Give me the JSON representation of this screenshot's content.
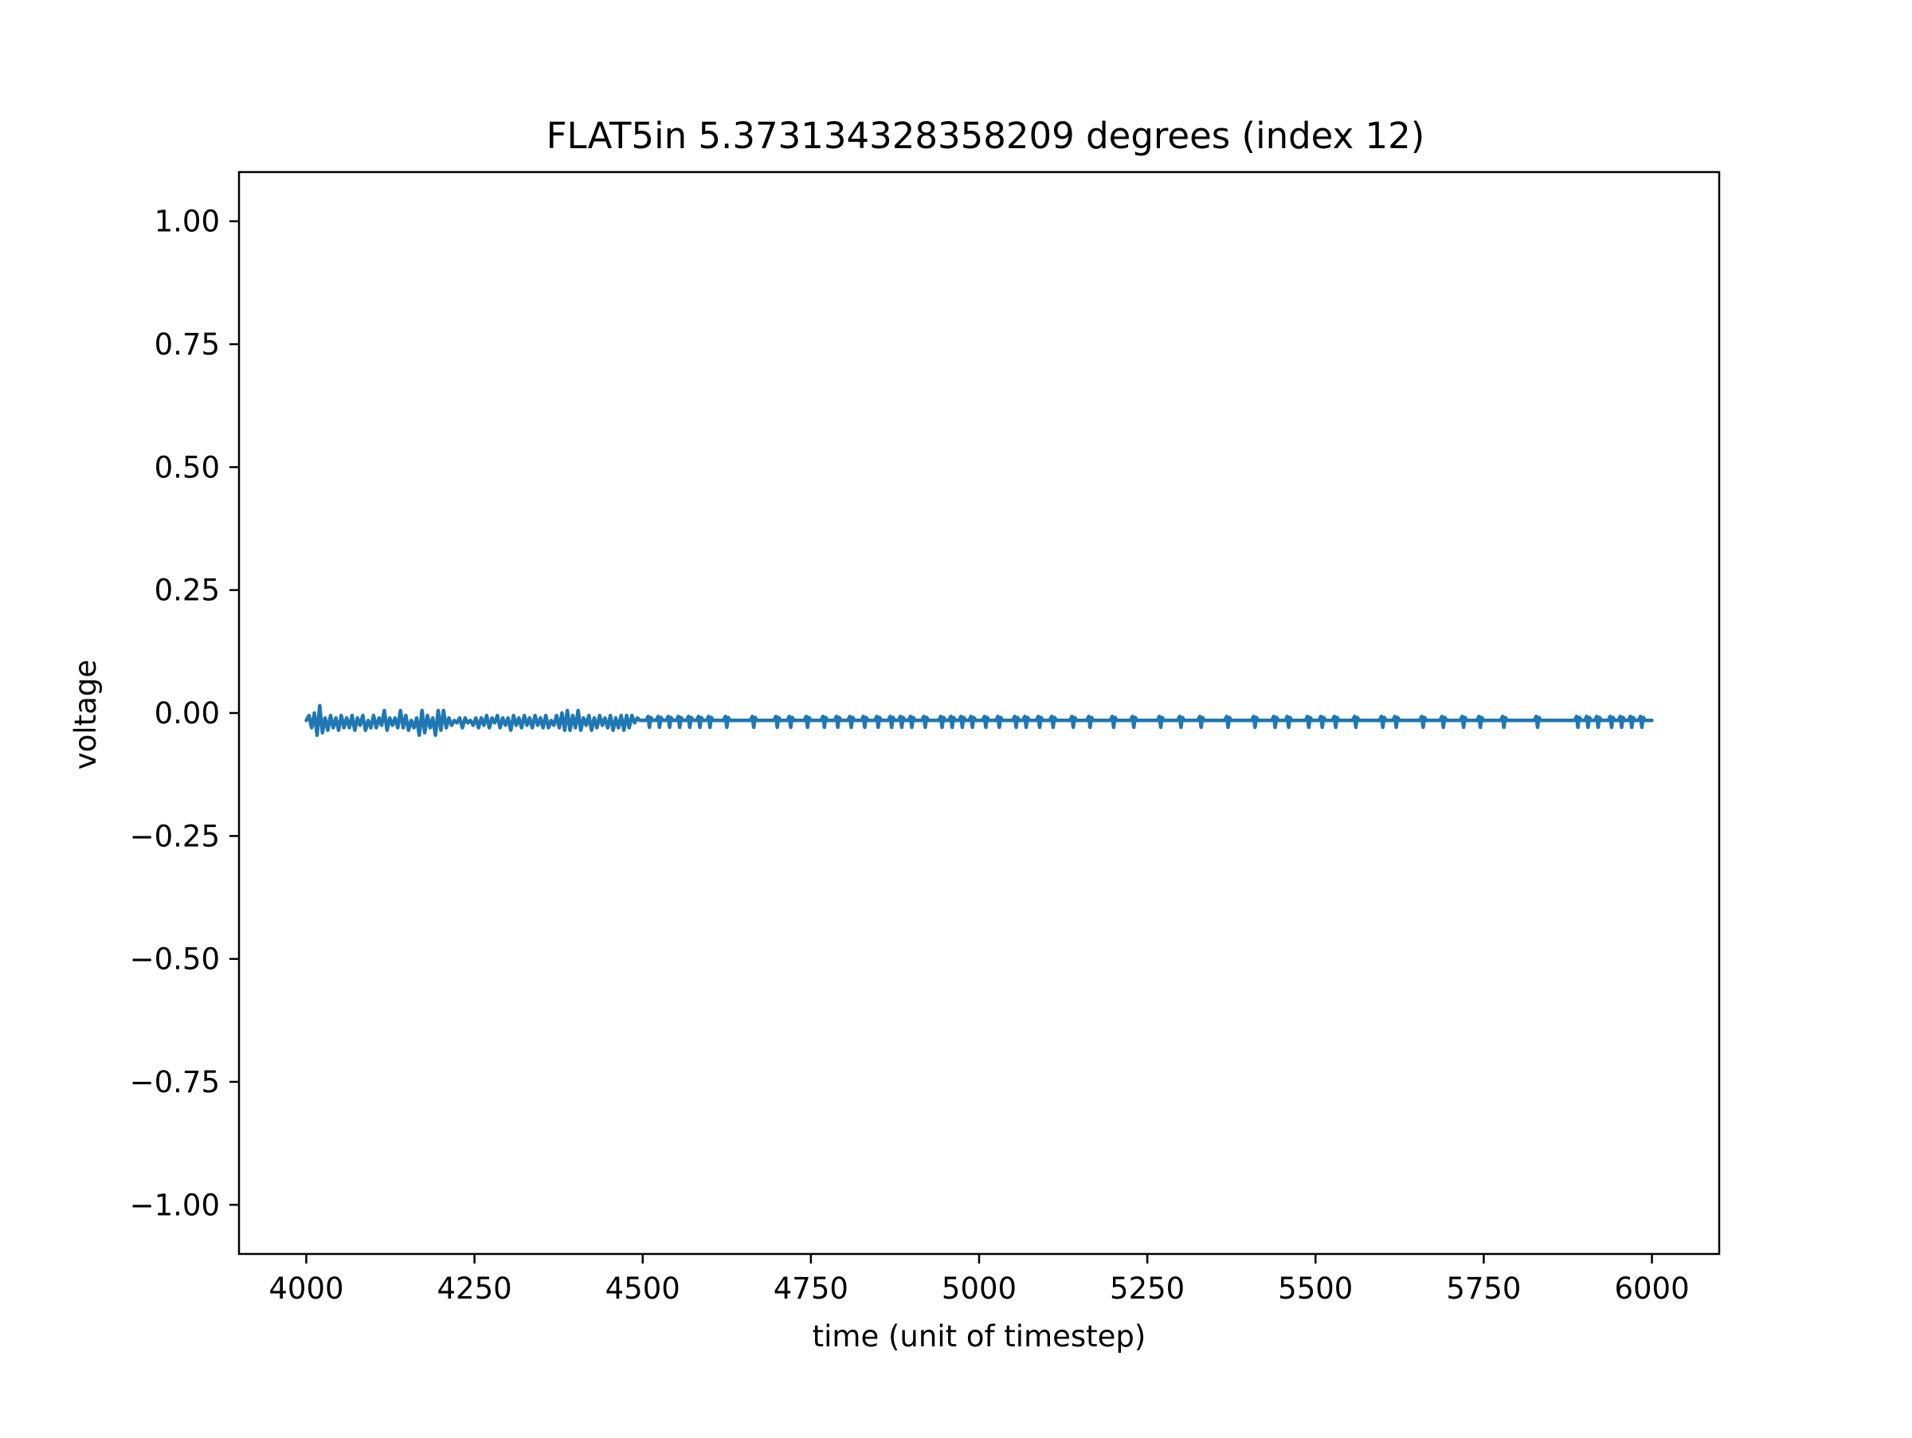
{
  "chart_data": {
    "type": "line",
    "title": "FLAT5in 5.373134328358209 degrees (index 12)",
    "xlabel": "time (unit of timestep)",
    "ylabel": "voltage",
    "xlim": [
      3900,
      6100
    ],
    "ylim": [
      -1.1,
      1.1
    ],
    "xticks": [
      4000,
      4250,
      4500,
      4750,
      5000,
      5250,
      5500,
      5750,
      6000
    ],
    "xtick_labels": [
      "4000",
      "4250",
      "4500",
      "4750",
      "5000",
      "5250",
      "5500",
      "5750",
      "6000"
    ],
    "yticks": [
      1.0,
      0.75,
      0.5,
      0.25,
      0.0,
      -0.25,
      -0.5,
      -0.75,
      -1.0
    ],
    "ytick_labels": [
      "1.00",
      "0.75",
      "0.50",
      "0.25",
      "0.00",
      "−0.25",
      "−0.50",
      "−0.75",
      "−1.00"
    ],
    "grid": false,
    "series": [
      {
        "color": "#1f77b4",
        "baseline": -0.015,
        "x": [
          4000,
          4004,
          4008,
          4012,
          4016,
          4020,
          4024,
          4028,
          4032,
          4036,
          4040,
          4044,
          4048,
          4052,
          4056,
          4060,
          4064,
          4068,
          4072,
          4076,
          4080,
          4084,
          4088,
          4092,
          4096,
          4100,
          4104,
          4108,
          4112,
          4116,
          4120,
          4124,
          4128,
          4132,
          4136,
          4140,
          4144,
          4148,
          4152,
          4156,
          4160,
          4164,
          4168,
          4172,
          4176,
          4180,
          4184,
          4188,
          4192,
          4196,
          4200,
          4204,
          4208,
          4212,
          4216,
          4220,
          4224,
          4228,
          4232,
          4236,
          4240,
          4244,
          4248,
          4252,
          4256,
          4260,
          4264,
          4268,
          4272,
          4276,
          4280,
          4284,
          4288,
          4292,
          4296,
          4300,
          4304,
          4308,
          4312,
          4316,
          4320,
          4324,
          4328,
          4332,
          4336,
          4340,
          4344,
          4348,
          4352,
          4356,
          4360,
          4364,
          4368,
          4372,
          4376,
          4380,
          4384,
          4388,
          4392,
          4396,
          4400,
          4404,
          4408,
          4412,
          4416,
          4420,
          4424,
          4428,
          4432,
          4436,
          4440,
          4444,
          4448,
          4452,
          4456,
          4460,
          4464,
          4468,
          4472,
          4476,
          4480,
          4484,
          4488,
          4492,
          4496
        ],
        "y": [
          -0.015,
          -0.005,
          -0.03,
          0.0,
          -0.045,
          0.015,
          -0.04,
          -0.01,
          -0.035,
          -0.005,
          -0.03,
          -0.01,
          -0.035,
          -0.005,
          -0.03,
          -0.01,
          -0.03,
          -0.005,
          -0.035,
          -0.01,
          -0.025,
          -0.005,
          -0.035,
          -0.015,
          -0.03,
          -0.005,
          -0.03,
          -0.01,
          -0.025,
          0.005,
          -0.035,
          -0.01,
          -0.025,
          -0.01,
          -0.03,
          0.005,
          -0.03,
          -0.005,
          -0.035,
          -0.015,
          -0.03,
          -0.01,
          -0.045,
          0.005,
          -0.04,
          -0.005,
          -0.03,
          -0.01,
          -0.045,
          0.005,
          -0.035,
          0.005,
          -0.03,
          -0.01,
          -0.025,
          -0.015,
          -0.02,
          -0.01,
          -0.03,
          -0.01,
          -0.02,
          -0.015,
          -0.025,
          -0.01,
          -0.03,
          -0.01,
          -0.025,
          -0.005,
          -0.03,
          -0.01,
          -0.02,
          -0.005,
          -0.03,
          -0.01,
          -0.025,
          -0.01,
          -0.035,
          -0.005,
          -0.025,
          -0.01,
          -0.03,
          -0.005,
          -0.025,
          -0.01,
          -0.03,
          -0.005,
          -0.025,
          -0.01,
          -0.03,
          -0.005,
          -0.03,
          -0.015,
          -0.025,
          -0.005,
          -0.03,
          0.0,
          -0.035,
          0.005,
          -0.035,
          -0.005,
          -0.03,
          0.005,
          -0.035,
          -0.01,
          -0.025,
          -0.005,
          -0.035,
          -0.01,
          -0.03,
          -0.005,
          -0.025,
          -0.01,
          -0.03,
          -0.005,
          -0.035,
          -0.01,
          -0.03,
          -0.005,
          -0.035,
          -0.005,
          -0.03,
          -0.005,
          -0.02,
          -0.01,
          -0.015
        ],
        "spike_x": [
          4510,
          4525,
          4540,
          4555,
          4570,
          4585,
          4600,
          4625,
          4665,
          4700,
          4720,
          4745,
          4770,
          4790,
          4810,
          4830,
          4850,
          4870,
          4885,
          4900,
          4920,
          4945,
          4960,
          4975,
          4990,
          5010,
          5030,
          5055,
          5070,
          5090,
          5110,
          5140,
          5165,
          5200,
          5230,
          5270,
          5300,
          5330,
          5370,
          5410,
          5440,
          5460,
          5490,
          5510,
          5530,
          5560,
          5600,
          5620,
          5660,
          5690,
          5720,
          5745,
          5780,
          5830,
          5890,
          5905,
          5920,
          5940,
          5955,
          5970,
          5985
        ]
      }
    ]
  }
}
